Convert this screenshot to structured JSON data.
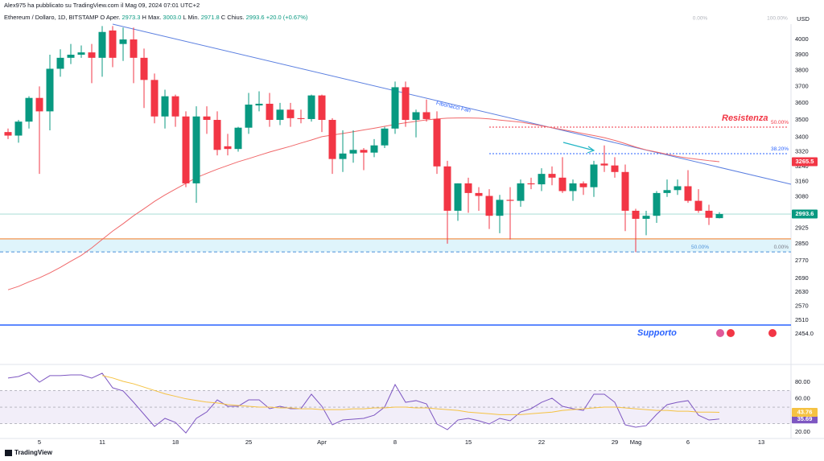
{
  "header": {
    "byline": "Alex975 ha pubblicato su TradingView.com il Mag 09, 2024 07:01 UTC+2",
    "symbol": "Ethereum / Dollaro, 1D, BITSTAMP",
    "fields": [
      {
        "key": "O",
        "name": "Aper.",
        "label": "2973.3"
      },
      {
        "key": "H",
        "name": "Max.",
        "label": "3003.0"
      },
      {
        "key": "L",
        "name": "Min.",
        "label": "2971.8"
      },
      {
        "key": "C",
        "name": "Chius.",
        "label": "2993.6"
      }
    ],
    "change": "+20.0 (+0.67%)"
  },
  "footer": {
    "brand": "TradingView"
  },
  "chart_data": [
    {
      "type": "candlestick",
      "currency": "USD",
      "log": true,
      "grid": false,
      "up_color": "#089981",
      "down_color": "#f23645",
      "categories": [
        null,
        null,
        null,
        "5",
        null,
        null,
        null,
        null,
        null,
        "11",
        null,
        null,
        null,
        null,
        null,
        null,
        "18",
        null,
        null,
        null,
        null,
        null,
        null,
        "25",
        null,
        null,
        null,
        null,
        null,
        null,
        "Apr",
        null,
        null,
        null,
        null,
        null,
        null,
        "8",
        null,
        null,
        null,
        null,
        null,
        null,
        "15",
        null,
        null,
        null,
        null,
        null,
        null,
        "22",
        null,
        null,
        null,
        null,
        null,
        null,
        "29",
        null,
        "Mag",
        null,
        null,
        null,
        null,
        "6",
        null,
        null,
        null,
        null,
        null,
        null,
        "13",
        null,
        null
      ],
      "open": [
        3430,
        3410,
        3490,
        3630,
        3550,
        3810,
        3880,
        3900,
        3915,
        3880,
        4060,
        3970,
        4000,
        3880,
        3740,
        3520,
        3640,
        3520,
        3150,
        3520,
        3500,
        3350,
        3335,
        3455,
        3585,
        3595,
        3500,
        3560,
        3510,
        3505,
        3645,
        3500,
        3280,
        3310,
        3330,
        3315,
        3355,
        3450,
        3695,
        3500,
        3545,
        3505,
        3240,
        3010,
        3150,
        3100,
        3085,
        2985,
        3065,
        3060,
        3150,
        3145,
        3200,
        3180,
        3110,
        3150,
        3130,
        3255,
        3245,
        3210,
        3010,
        2970,
        2985,
        3100,
        3115,
        3135,
        3060,
        3010,
        2973.3,
        null,
        null,
        null,
        null,
        null,
        null
      ],
      "high": [
        3450,
        3500,
        3640,
        3700,
        3900,
        3935,
        3970,
        3960,
        3970,
        4090,
        4090,
        4080,
        4080,
        3940,
        3780,
        3680,
        3650,
        3550,
        3580,
        3580,
        3550,
        3420,
        3460,
        3660,
        3670,
        3660,
        3600,
        3600,
        3560,
        3650,
        3650,
        3510,
        3440,
        3440,
        3340,
        3390,
        3460,
        3730,
        3730,
        3560,
        3620,
        3550,
        3270,
        3150,
        3180,
        3130,
        3120,
        3090,
        3130,
        3170,
        3180,
        3230,
        3240,
        3290,
        3170,
        3160,
        3270,
        3355,
        3290,
        3250,
        3020,
        3010,
        3110,
        3170,
        3170,
        3220,
        3120,
        3040,
        3003,
        null,
        null,
        null,
        null,
        null,
        null
      ],
      "low": [
        3390,
        3370,
        3450,
        3200,
        3440,
        3760,
        3840,
        3880,
        3720,
        3760,
        3820,
        3860,
        3720,
        3570,
        3480,
        3450,
        3460,
        3130,
        3050,
        3420,
        3300,
        3300,
        3320,
        3420,
        3550,
        3460,
        3470,
        3460,
        3480,
        3490,
        3430,
        3200,
        3210,
        3260,
        3220,
        3290,
        3340,
        3420,
        3460,
        3400,
        3490,
        3200,
        2850,
        2960,
        3000,
        3010,
        2920,
        2900,
        2870,
        3030,
        3120,
        3110,
        3140,
        3100,
        3060,
        3090,
        3080,
        3210,
        3180,
        2910,
        2810,
        2890,
        2950,
        3080,
        3090,
        3050,
        3000,
        2940,
        2971.8,
        null,
        null,
        null,
        null,
        null,
        null
      ],
      "close": [
        3410,
        3490,
        3630,
        3550,
        3810,
        3880,
        3900,
        3915,
        3880,
        4050,
        3880,
        4000,
        3880,
        3740,
        3520,
        3640,
        3520,
        3150,
        3520,
        3500,
        3330,
        3335,
        3455,
        3590,
        3595,
        3500,
        3560,
        3510,
        3505,
        3645,
        3500,
        3280,
        3310,
        3330,
        3315,
        3355,
        3450,
        3695,
        3500,
        3545,
        3505,
        3240,
        3010,
        3150,
        3100,
        3085,
        2985,
        3065,
        3060,
        3150,
        3145,
        3200,
        3180,
        3110,
        3150,
        3130,
        3250,
        3245,
        3210,
        3010,
        2970,
        2985,
        3100,
        3115,
        3135,
        3060,
        3010,
        2975,
        2993.6,
        null,
        null,
        null,
        null,
        null,
        null
      ],
      "ma": {
        "color": "#f0686a",
        "values": [
          2640,
          2655,
          2675,
          2693,
          2715,
          2740,
          2768,
          2795,
          2830,
          2870,
          2910,
          2946,
          2985,
          3020,
          3057,
          3090,
          3120,
          3150,
          3180,
          3203,
          3225,
          3245,
          3265,
          3282,
          3300,
          3318,
          3334,
          3350,
          3368,
          3385,
          3404,
          3413,
          3422,
          3432,
          3442,
          3452,
          3463,
          3474,
          3483,
          3492,
          3500,
          3506,
          3510,
          3511,
          3511,
          3510,
          3506,
          3499,
          3493,
          3487,
          3477,
          3466,
          3455,
          3444,
          3433,
          3421,
          3410,
          3398,
          3383,
          3365,
          3346,
          3330,
          3318,
          3306,
          3294,
          3285,
          3278,
          3271,
          3265.5,
          null,
          null,
          null,
          null,
          null,
          null
        ]
      },
      "ylim": [
        2373,
        4103
      ],
      "yticks": [
        4000,
        3900,
        3800,
        3700,
        3600,
        3500,
        3400,
        3320,
        3240,
        3160,
        3080,
        2925,
        2850,
        2770,
        2690,
        2630,
        2570,
        2510,
        {
          "value": 2454,
          "label": "2454.0"
        }
      ],
      "levels": [
        {
          "label": "50.00%",
          "price": 3458,
          "color": "#f23645"
        },
        {
          "label": "38.20%",
          "price": 3309,
          "color": "#2962ff"
        },
        {
          "label": "0.00%",
          "price": 2811,
          "color": "#787b86"
        }
      ],
      "fib_top_labels": [
        "0.00%",
        "100.00%"
      ],
      "zone_label": "50.00%",
      "support_zone": [
        2811,
        2873
      ],
      "support": {
        "label": "Supporto",
        "price": 2490
      },
      "resistance_label": "Resistenza",
      "fan_label": "Fibonacci Fan"
    },
    {
      "type": "line",
      "series": [
        {
          "color": "#7e57c2",
          "values": [
            84.9,
            86.8,
            91.6,
            80.0,
            87.8,
            87.8,
            88.7,
            88.7,
            84.9,
            90.7,
            73.2,
            69.4,
            55.8,
            41.3,
            26.8,
            36.5,
            31.6,
            19.0,
            36.5,
            44.2,
            58.7,
            51.0,
            51.0,
            58.7,
            58.7,
            48.1,
            51.0,
            48.1,
            48.1,
            65.5,
            51.0,
            28.7,
            34.5,
            35.5,
            36.5,
            40.3,
            50.0,
            77.1,
            55.8,
            57.8,
            53.9,
            29.7,
            22.9,
            34.5,
            36.5,
            33.6,
            29.7,
            36.5,
            33.6,
            44.2,
            48.1,
            55.8,
            60.7,
            51.0,
            48.1,
            46.1,
            65.5,
            65.5,
            55.8,
            28.7,
            25.8,
            27.7,
            41.3,
            52.9,
            55.8,
            57.8,
            40.3,
            34.5,
            35.69,
            null,
            null,
            null,
            null,
            null,
            null
          ]
        },
        {
          "color": "#f5c242",
          "values": [
            null,
            null,
            null,
            null,
            null,
            null,
            null,
            null,
            null,
            88,
            85,
            81,
            78,
            74,
            70,
            66,
            63,
            60,
            58,
            56,
            55,
            53,
            52,
            51,
            50,
            50,
            49,
            49,
            48,
            48,
            47,
            47,
            47,
            48,
            48,
            49,
            49,
            50,
            50,
            49,
            49,
            48,
            47,
            46,
            44,
            43,
            42,
            41,
            41,
            41,
            42,
            43,
            44,
            46,
            47,
            48,
            49,
            50,
            50,
            49,
            48,
            47,
            46,
            46,
            45,
            45,
            44,
            44,
            43.76,
            null,
            null,
            null,
            null,
            null,
            null
          ]
        }
      ],
      "levels": [
        70,
        50,
        30
      ],
      "ylim": [
        15.2,
        97.4
      ],
      "yticks": [
        {
          "value": 80,
          "label": "80.00"
        },
        {
          "value": 60,
          "label": "60.00"
        },
        {
          "value": 20,
          "label": "20.00"
        }
      ]
    }
  ]
}
